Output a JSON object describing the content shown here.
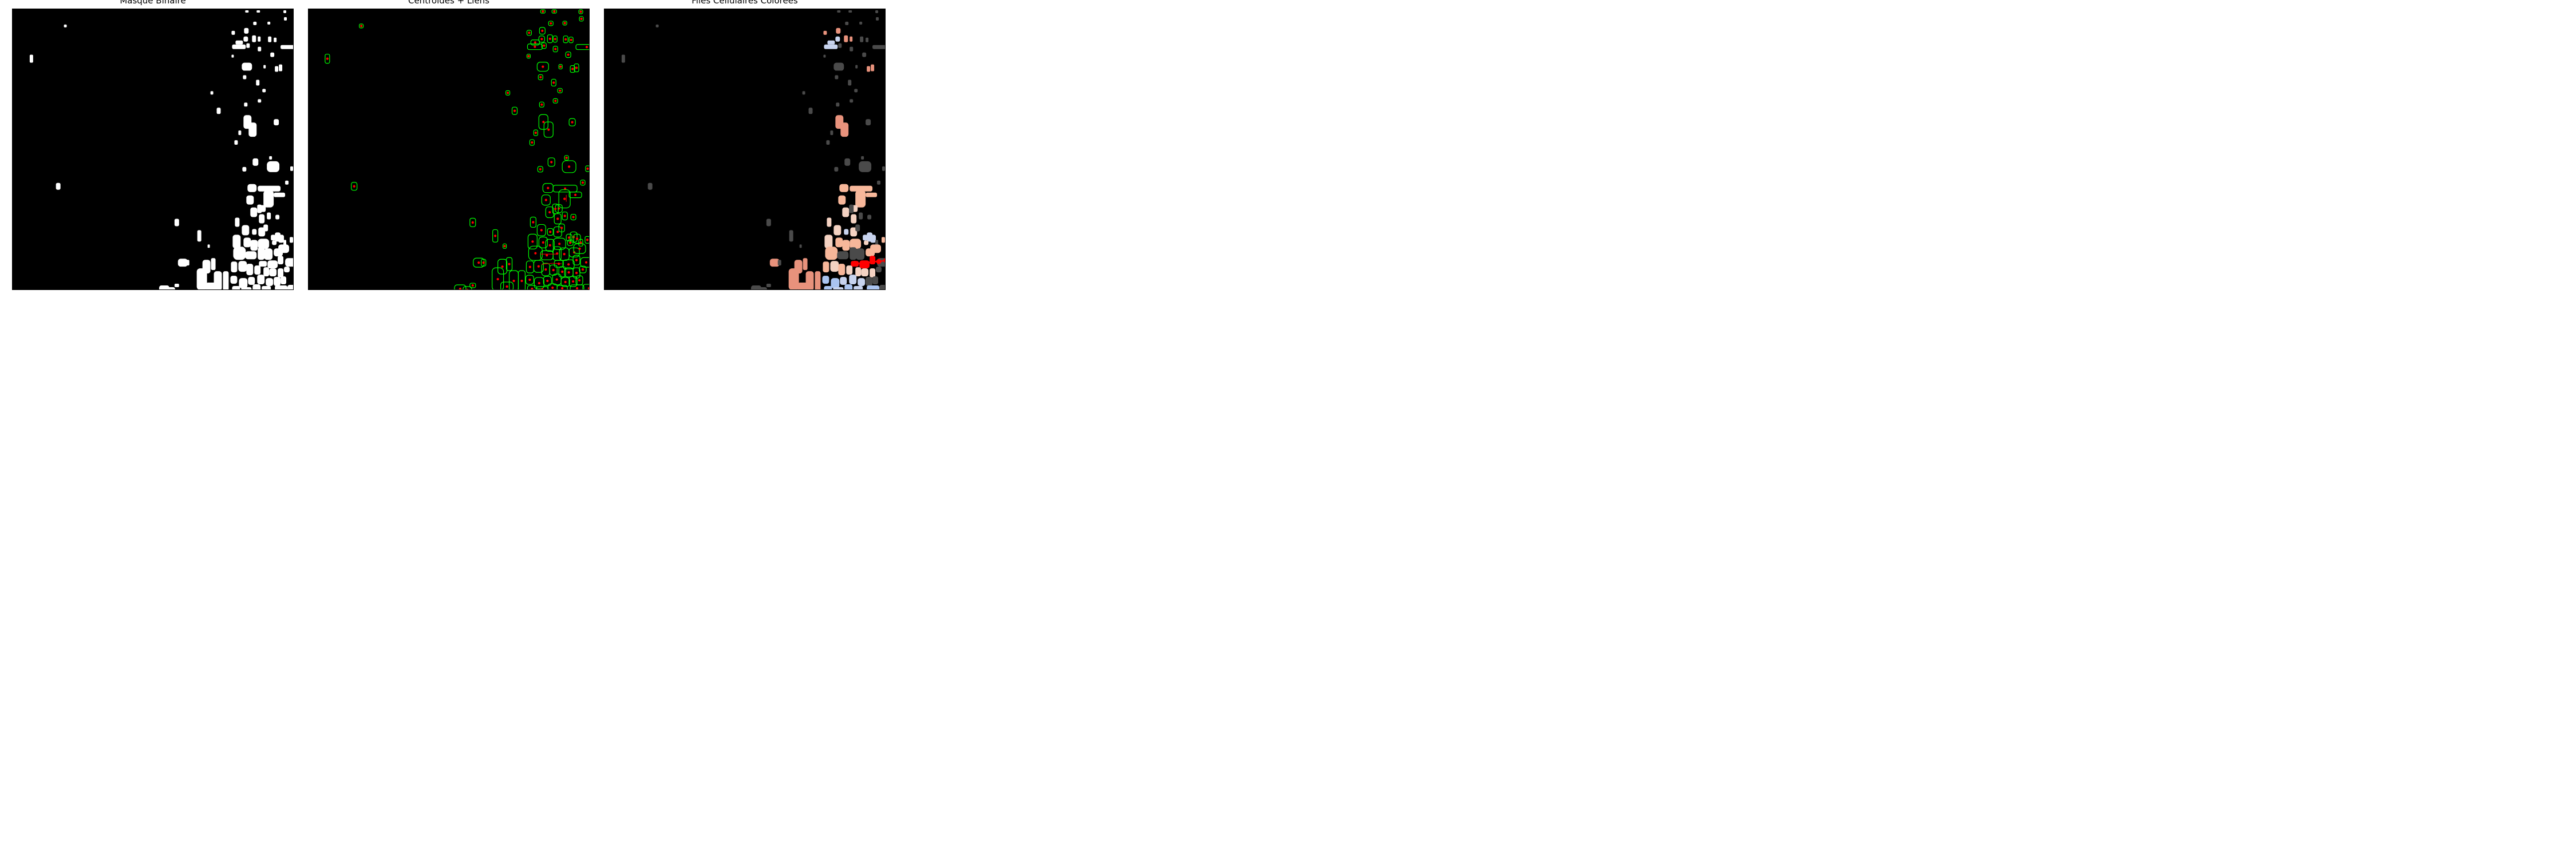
{
  "panels": [
    {
      "title": "Masque Binaire"
    },
    {
      "title": "Centroïdes + Liens"
    },
    {
      "title": "Files Cellulaires Colorées"
    }
  ],
  "colors": {
    "background": "#000000",
    "mask": "#ffffff",
    "contour": "#00ff00",
    "centroid": "#ff0000",
    "unassigned": "#4a4a4a",
    "file_palette": [
      "#e8927c",
      "#f7b79a",
      "#f4d2c2",
      "#c7d3ee",
      "#aac4f0",
      "#ff0000"
    ]
  }
}
